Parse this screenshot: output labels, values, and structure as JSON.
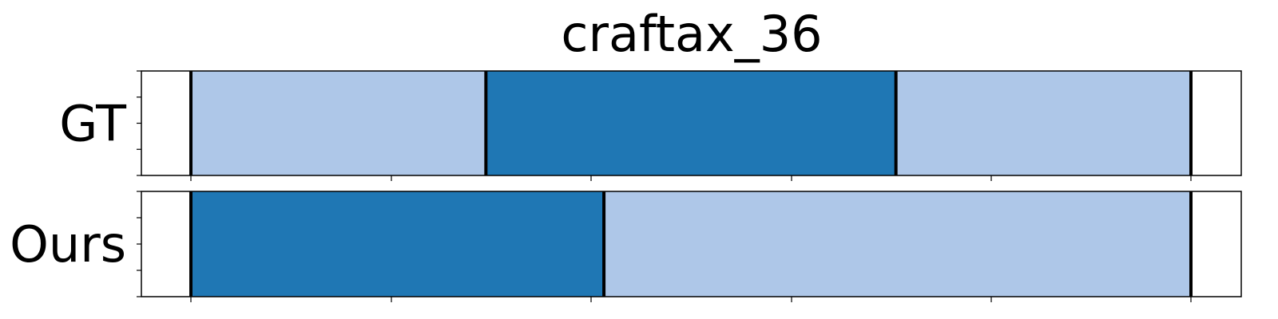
{
  "chart_data": {
    "type": "bar",
    "title": "craftax_36",
    "xlim": [
      0,
      1
    ],
    "colors": {
      "light": "#aec7e8",
      "dark": "#1f77b4",
      "boundary": "#000000"
    },
    "rows": [
      {
        "label": "GT",
        "segments": [
          {
            "start": 0.0,
            "end": 0.295,
            "class": "light"
          },
          {
            "start": 0.295,
            "end": 0.705,
            "class": "dark"
          },
          {
            "start": 0.705,
            "end": 1.0,
            "class": "light"
          }
        ],
        "boundaries": [
          0.0,
          0.295,
          0.705,
          1.0
        ]
      },
      {
        "label": "Ours",
        "segments": [
          {
            "start": 0.0,
            "end": 0.413,
            "class": "dark"
          },
          {
            "start": 0.413,
            "end": 1.0,
            "class": "light"
          }
        ],
        "boundaries": [
          0.0,
          0.413,
          1.0
        ]
      }
    ]
  }
}
